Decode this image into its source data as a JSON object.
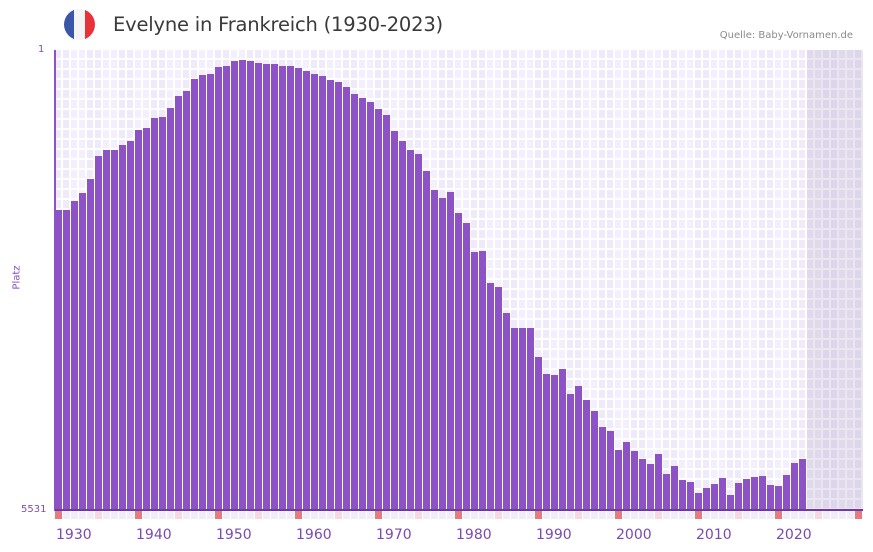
{
  "header": {
    "title": "Evelyne in Frankreich (1930-2023)",
    "source": "Quelle: Baby-Vornamen.de",
    "flag_colors": [
      "#3b56a8",
      "#f4f4f4",
      "#e8323a"
    ]
  },
  "axes": {
    "y_top_label": "1",
    "y_bottom_label": "5531",
    "y_title": "Platz",
    "x_labels": [
      "1930",
      "1940",
      "1950",
      "1960",
      "1970",
      "1980",
      "1990",
      "2000",
      "2010",
      "2020"
    ]
  },
  "colors": {
    "bar": "#8c52c6",
    "decade_marker": "#e87a7e",
    "half_decade_marker": "#f6d8e0",
    "axis_text": "#7a4aae"
  },
  "chart_data": {
    "type": "bar",
    "title": "Evelyne in Frankreich (1930-2023)",
    "xlabel": "",
    "ylabel": "Platz",
    "y_inverted": true,
    "ylim": [
      5531,
      1
    ],
    "x_range_shown": [
      1930,
      2030
    ],
    "grid": true,
    "categories": [
      1930,
      1931,
      1932,
      1933,
      1934,
      1935,
      1936,
      1937,
      1938,
      1939,
      1940,
      1941,
      1942,
      1943,
      1944,
      1945,
      1946,
      1947,
      1948,
      1949,
      1950,
      1951,
      1952,
      1953,
      1954,
      1955,
      1956,
      1957,
      1958,
      1959,
      1960,
      1961,
      1962,
      1963,
      1964,
      1965,
      1966,
      1967,
      1968,
      1969,
      1970,
      1971,
      1972,
      1973,
      1974,
      1975,
      1976,
      1977,
      1978,
      1979,
      1980,
      1981,
      1982,
      1983,
      1984,
      1985,
      1986,
      1987,
      1988,
      1989,
      1990,
      1991,
      1992,
      1993,
      1994,
      1995,
      1996,
      1997,
      1998,
      1999,
      2000,
      2001,
      2002,
      2003,
      2004,
      2005,
      2006,
      2007,
      2008,
      2009,
      2010,
      2011,
      2012,
      2013,
      2014,
      2015,
      2016,
      2017,
      2018,
      2019,
      2020,
      2021,
      2022,
      2023
    ],
    "values": [
      1924,
      1924,
      1816,
      1720,
      1551,
      1275,
      1203,
      1203,
      1142,
      1094,
      961,
      937,
      817,
      805,
      697,
      553,
      493,
      348,
      300,
      288,
      204,
      192,
      132,
      120,
      132,
      156,
      168,
      168,
      192,
      192,
      216,
      252,
      288,
      312,
      360,
      385,
      445,
      529,
      577,
      625,
      709,
      781,
      973,
      1094,
      1202,
      1250,
      1455,
      1683,
      1780,
      1708,
      1960,
      2081,
      2430,
      2418,
      2803,
      2851,
      3164,
      3344,
      3344,
      3344,
      3693,
      3897,
      3909,
      3837,
      4138,
      4042,
      4210,
      4342,
      4535,
      4583,
      4811,
      4715,
      4823,
      4919,
      4980,
      4859,
      5100,
      5004,
      5172,
      5196,
      5329,
      5268,
      5220,
      5148,
      5352,
      5208,
      5160,
      5136,
      5124,
      5232,
      5244,
      5112,
      4968,
      4919
    ]
  }
}
